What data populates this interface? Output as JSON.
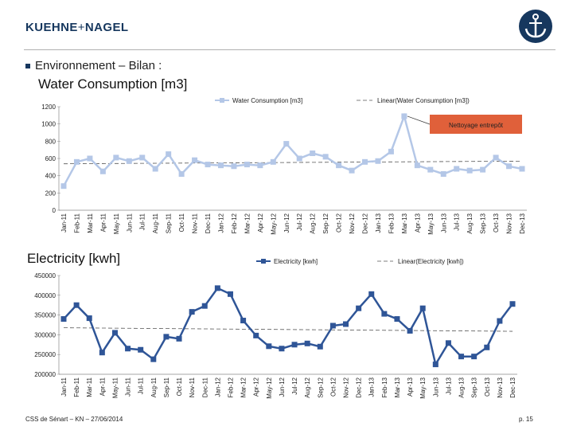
{
  "header": {
    "brand_left": "KUEHNE",
    "brand_plus": "+",
    "brand_right": "NAGEL",
    "section_title": "Environnement – Bilan :"
  },
  "footer": {
    "left": "CSS de Sénart – KN – 27/06/2014",
    "right": "p. 15"
  },
  "colors": {
    "brand": "#16375e",
    "water_series": "#b4c7e7",
    "elec_series": "#2f5597"
  },
  "chart_data": [
    {
      "type": "line",
      "title": "Water Consumption [m3]",
      "categories": [
        "Jan-11",
        "Feb-11",
        "Mar-11",
        "Apr-11",
        "May-11",
        "Jun-11",
        "Jul-11",
        "Aug-11",
        "Sep-11",
        "Oct-11",
        "Nov-11",
        "Dec-11",
        "Jan-12",
        "Feb-12",
        "Mar-12",
        "Apr-12",
        "May-12",
        "Jun-12",
        "Jul-12",
        "Aug-12",
        "Sep-12",
        "Oct-12",
        "Nov-12",
        "Dec-12",
        "Jan-13",
        "Feb-13",
        "Mar-13",
        "Apr-13",
        "May-13",
        "Jun-13",
        "Jul-13",
        "Aug-13",
        "Sep-13",
        "Oct-13",
        "Nov-13",
        "Dec-13"
      ],
      "series": [
        {
          "name": "Water Consumption [m3]",
          "values": [
            280,
            560,
            600,
            450,
            610,
            570,
            610,
            480,
            650,
            420,
            580,
            530,
            520,
            510,
            530,
            520,
            560,
            770,
            600,
            660,
            620,
            520,
            460,
            560,
            570,
            680,
            1090,
            520,
            470,
            420,
            480,
            460,
            470,
            610,
            510,
            480
          ]
        }
      ],
      "trend_legend": "Linear(Water Consumption [m3])",
      "annotation": "Nettoyage entrepôt",
      "ylim": [
        0,
        1200
      ],
      "yticks": [
        "0",
        "200",
        "400",
        "600",
        "800",
        "1000",
        "1200"
      ]
    },
    {
      "type": "line",
      "title": "Electricity [kwh]",
      "categories": [
        "Jan-11",
        "Feb-11",
        "Mar-11",
        "Apr-11",
        "May-11",
        "Jun-11",
        "Jul-11",
        "Aug-11",
        "Sep-11",
        "Oct-11",
        "Nov-11",
        "Dec-11",
        "Jan-12",
        "Feb-12",
        "Mar-12",
        "Apr-12",
        "May-12",
        "Jun-12",
        "Jul-12",
        "Aug-12",
        "Sep-12",
        "Oct-12",
        "Nov-12",
        "Dec-12",
        "Jan-13",
        "Feb-13",
        "Mar-13",
        "Apr-13",
        "May-13",
        "Jun-13",
        "Jul-13",
        "Aug-13",
        "Sep-13",
        "Oct-13",
        "Nov-13",
        "Dec-13"
      ],
      "series": [
        {
          "name": "Electricity [kwh]",
          "values": [
            340000,
            375000,
            342000,
            255000,
            305000,
            265000,
            262000,
            238000,
            295000,
            290000,
            358000,
            373000,
            418000,
            403000,
            336000,
            298000,
            271000,
            265000,
            275000,
            278000,
            270000,
            323000,
            327000,
            367000,
            403000,
            353000,
            340000,
            310000,
            367000,
            225000,
            279000,
            245000,
            245000,
            268000,
            335000,
            378000
          ]
        }
      ],
      "trend_legend": "Linear(Electricity [kwh])",
      "ylim": [
        200000,
        450000
      ],
      "yticks": [
        "200000",
        "250000",
        "300000",
        "350000",
        "400000",
        "450000"
      ]
    }
  ]
}
